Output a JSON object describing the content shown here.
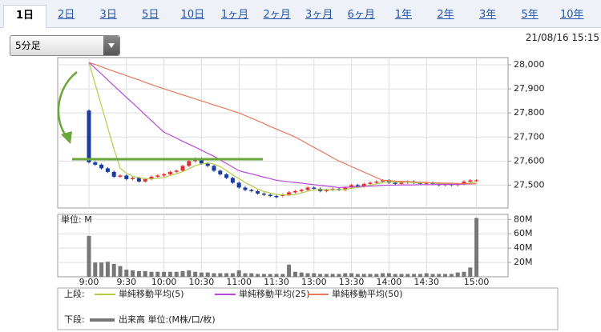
{
  "tabs": [
    "1日",
    "2日",
    "3日",
    "5日",
    "10日",
    "1ヶ月",
    "2ヶ月",
    "3ヶ月",
    "6ヶ月",
    "1年",
    "2年",
    "3年",
    "5年",
    "10年"
  ],
  "selected_tab": 0,
  "interval_select": "5分足",
  "timestamp": "21/08/16 15:15",
  "chart_data": [
    {
      "type": "candlestick",
      "legend_label": "上段:",
      "up_color": "#e03030",
      "down_color": "#1c3c9c",
      "open": [
        27810,
        27595,
        27585,
        27570,
        27555,
        27535,
        27540,
        27525,
        27530,
        27515,
        27525,
        27535,
        27540,
        27545,
        27555,
        27560,
        27580,
        27600,
        27610,
        27590,
        27580,
        27560,
        27545,
        27530,
        27510,
        27490,
        27480,
        27475,
        27465,
        27460,
        27455,
        27455,
        27460,
        27470,
        27475,
        27480,
        27490,
        27485,
        27475,
        27480,
        27485,
        27480,
        27490,
        27500,
        27495,
        27505,
        27510,
        27515,
        27520,
        27510,
        27505,
        27510,
        27515,
        27510,
        27505,
        27510,
        27505,
        27500,
        27505,
        27500,
        27505,
        27515,
        27520
      ],
      "high": [
        27815,
        27600,
        27590,
        27575,
        27560,
        27545,
        27545,
        27535,
        27535,
        27530,
        27540,
        27545,
        27550,
        27560,
        27565,
        27585,
        27605,
        27615,
        27615,
        27595,
        27585,
        27565,
        27550,
        27535,
        27515,
        27495,
        27485,
        27480,
        27470,
        27465,
        27460,
        27465,
        27475,
        27480,
        27485,
        27495,
        27495,
        27490,
        27485,
        27490,
        27490,
        27495,
        27505,
        27505,
        27510,
        27515,
        27520,
        27525,
        27525,
        27515,
        27515,
        27520,
        27520,
        27515,
        27515,
        27515,
        27510,
        27510,
        27510,
        27510,
        27520,
        27525,
        27525
      ],
      "low": [
        27590,
        27580,
        27565,
        27550,
        27530,
        27530,
        27520,
        27520,
        27510,
        27510,
        27520,
        27530,
        27535,
        27540,
        27550,
        27555,
        27575,
        27595,
        27585,
        27575,
        27555,
        27540,
        27525,
        27505,
        27485,
        27475,
        27470,
        27460,
        27455,
        27450,
        27445,
        27450,
        27455,
        27465,
        27470,
        27475,
        27480,
        27470,
        27470,
        27475,
        27475,
        27475,
        27485,
        27490,
        27490,
        27500,
        27505,
        27510,
        27505,
        27500,
        27500,
        27505,
        27505,
        27500,
        27500,
        27500,
        27495,
        27495,
        27495,
        27495,
        27500,
        27510,
        27515
      ],
      "close": [
        27595,
        27585,
        27570,
        27555,
        27535,
        27540,
        27525,
        27530,
        27515,
        27525,
        27535,
        27540,
        27545,
        27555,
        27560,
        27580,
        27600,
        27610,
        27590,
        27580,
        27560,
        27545,
        27530,
        27510,
        27490,
        27480,
        27475,
        27465,
        27460,
        27455,
        27450,
        27460,
        27470,
        27475,
        27480,
        27490,
        27485,
        27475,
        27480,
        27485,
        27480,
        27490,
        27500,
        27495,
        27505,
        27510,
        27515,
        27520,
        27510,
        27505,
        27510,
        27515,
        27510,
        27505,
        27510,
        27505,
        27500,
        27505,
        27500,
        27505,
        27515,
        27520,
        27520
      ],
      "series": [
        {
          "name": "単純移動平均(5)",
          "color": "#b4cc48",
          "values": [
            28010,
            27920,
            27830,
            27740,
            27650,
            27570,
            27550,
            27537,
            27531,
            27527,
            27526,
            27529,
            27532,
            27540,
            27547,
            27556,
            27568,
            27581,
            27588,
            27592,
            27588,
            27577,
            27561,
            27543,
            27527,
            27511,
            27497,
            27484,
            27474,
            27467,
            27461,
            27459,
            27459,
            27461,
            27467,
            27475,
            27480,
            27481,
            27481,
            27481,
            27481,
            27482,
            27487,
            27490,
            27494,
            27500,
            27505,
            27511,
            27514,
            27513,
            27512,
            27512,
            27510,
            27509,
            27510,
            27509,
            27506,
            27505,
            27504,
            27503,
            27505,
            27509,
            27513
          ]
        },
        {
          "name": "単純移動平均(25)",
          "color": "#b848d8",
          "values": [
            28010,
            27986,
            27962,
            27937,
            27913,
            27889,
            27865,
            27841,
            27817,
            27792,
            27768,
            27744,
            27720,
            27708,
            27695,
            27682,
            27670,
            27658,
            27645,
            27632,
            27620,
            27605,
            27590,
            27575,
            27560,
            27553,
            27547,
            27540,
            27533,
            27527,
            27520,
            27517,
            27514,
            27511,
            27508,
            27505,
            27502,
            27499,
            27496,
            27493,
            27490,
            27491,
            27492,
            27494,
            27495,
            27496,
            27497,
            27499,
            27500,
            27500,
            27501,
            27501,
            27501,
            27502,
            27502,
            27502,
            27503,
            27503,
            27503,
            27504,
            27504,
            27505,
            27505
          ]
        },
        {
          "name": "単純移動平均(50)",
          "color": "#e8785a",
          "values": [
            28010,
            28001,
            27992,
            27982,
            27973,
            27964,
            27955,
            27946,
            27937,
            27927,
            27918,
            27909,
            27900,
            27892,
            27883,
            27875,
            27867,
            27858,
            27850,
            27842,
            27833,
            27825,
            27817,
            27808,
            27800,
            27789,
            27778,
            27767,
            27756,
            27744,
            27733,
            27722,
            27711,
            27700,
            27686,
            27671,
            27657,
            27643,
            27629,
            27614,
            27600,
            27589,
            27577,
            27566,
            27554,
            27543,
            27531,
            27520,
            27519,
            27517,
            27516,
            27515,
            27514,
            27512,
            27511,
            27510,
            27509,
            27508,
            27508,
            27507,
            27506,
            27506,
            27505
          ]
        }
      ],
      "ylim": [
        27405,
        28030
      ],
      "yticks": [
        {
          "value": 27500,
          "label": "27,500"
        },
        {
          "value": 27600,
          "label": "27,600"
        },
        {
          "value": 27700,
          "label": "27,700"
        },
        {
          "value": 27800,
          "label": "27,800"
        },
        {
          "value": 27900,
          "label": "27,900"
        },
        {
          "value": 28000,
          "label": "28,000"
        }
      ],
      "grid": true
    },
    {
      "type": "bar",
      "legend_label": "下段:",
      "unit_label": "単位: M",
      "categories": [
        "9:00",
        null,
        null,
        null,
        null,
        null,
        "9:30",
        null,
        null,
        null,
        null,
        null,
        "10:00",
        null,
        null,
        null,
        null,
        null,
        "10:30",
        null,
        null,
        null,
        null,
        null,
        "11:00",
        null,
        null,
        null,
        null,
        null,
        "11:30",
        null,
        null,
        null,
        null,
        null,
        "13:00",
        null,
        null,
        null,
        null,
        null,
        "13:30",
        null,
        null,
        null,
        null,
        null,
        "14:00",
        null,
        null,
        null,
        null,
        null,
        "14:30",
        null,
        null,
        null,
        null,
        null,
        null,
        null,
        "15:00"
      ],
      "series": [
        {
          "name": "出来高 単位:(M株/口/枚)",
          "color": "#777777",
          "values": [
            57,
            20,
            20,
            21,
            18,
            15,
            10,
            9,
            8,
            8,
            7,
            7,
            7,
            7,
            7,
            8,
            9,
            7,
            6,
            6,
            5,
            5,
            5,
            5,
            9,
            5,
            5,
            4,
            4,
            4,
            4,
            4,
            17,
            7,
            6,
            5,
            5,
            4,
            4,
            4,
            4,
            5,
            5,
            4,
            4,
            4,
            4,
            5,
            5,
            4,
            4,
            4,
            4,
            4,
            5,
            4,
            4,
            4,
            4,
            6,
            7,
            13,
            82
          ]
        }
      ],
      "ylim": [
        0,
        87
      ],
      "yticks": [
        {
          "value": 20,
          "label": "20M"
        },
        {
          "value": 40,
          "label": "40M"
        },
        {
          "value": 60,
          "label": "60M"
        },
        {
          "value": 80,
          "label": "80M"
        }
      ],
      "grid": true
    }
  ]
}
